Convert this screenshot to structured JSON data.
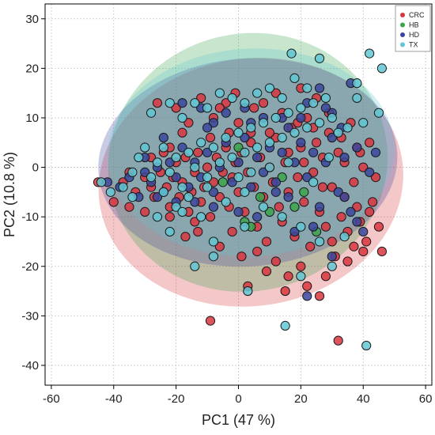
{
  "chart_data": {
    "type": "scatter",
    "title": "",
    "xlabel": "PC1 (47 %)",
    "ylabel": "PC2 (10.8 %)",
    "xlim": [
      -62,
      62
    ],
    "ylim": [
      -44,
      33
    ],
    "xticks": [
      -60,
      -40,
      -20,
      0,
      20,
      40,
      60
    ],
    "yticks": [
      -40,
      -30,
      -20,
      -10,
      0,
      10,
      20,
      30
    ],
    "xtick_labels": [
      "-60",
      "-40",
      "-20",
      "0",
      "20",
      "40",
      "60"
    ],
    "ytick_labels": [
      "-40",
      "-30",
      "-20",
      "-10",
      "0",
      "10",
      "20",
      "30"
    ],
    "grid": true,
    "legend_position": "top-right",
    "series": [
      {
        "name": "CRC",
        "color": "#d9353e",
        "ellipse": {
          "cx": 4,
          "cy": -3,
          "rx": 49,
          "ry": 25,
          "angle": -8
        },
        "points": [
          [
            -45,
            -3
          ],
          [
            -40,
            -7
          ],
          [
            -37,
            -3
          ],
          [
            -35,
            -1
          ],
          [
            -33,
            -5
          ],
          [
            -30,
            -2
          ],
          [
            -28,
            2
          ],
          [
            -27,
            -6
          ],
          [
            -25,
            -1
          ],
          [
            -24,
            3
          ],
          [
            -23,
            -4
          ],
          [
            -22,
            -8
          ],
          [
            -21,
            -2
          ],
          [
            -20,
            1
          ],
          [
            -19,
            -6
          ],
          [
            -18,
            -3
          ],
          [
            -17,
            2
          ],
          [
            -16,
            -9
          ],
          [
            -15,
            -5
          ],
          [
            -14,
            -1
          ],
          [
            -13,
            3
          ],
          [
            -12,
            -7
          ],
          [
            -11,
            -4
          ],
          [
            -10,
            0
          ],
          [
            -9,
            -10
          ],
          [
            -8,
            -3
          ],
          [
            -7,
            2
          ],
          [
            -6,
            -6
          ],
          [
            -5,
            -1
          ],
          [
            -4,
            4
          ],
          [
            -3,
            -8
          ],
          [
            -2,
            -2
          ],
          [
            -1,
            1
          ],
          [
            0,
            -5
          ],
          [
            1,
            3
          ],
          [
            2,
            -9
          ],
          [
            3,
            -1
          ],
          [
            4,
            5
          ],
          [
            5,
            -4
          ],
          [
            6,
            -12
          ],
          [
            7,
            2
          ],
          [
            8,
            -6
          ],
          [
            9,
            -15
          ],
          [
            10,
            0
          ],
          [
            11,
            -3
          ],
          [
            12,
            6
          ],
          [
            13,
            -8
          ],
          [
            14,
            -11
          ],
          [
            15,
            1
          ],
          [
            16,
            -5
          ],
          [
            17,
            8
          ],
          [
            18,
            -14
          ],
          [
            19,
            -2
          ],
          [
            20,
            4
          ],
          [
            21,
            -7
          ],
          [
            22,
            10
          ],
          [
            23,
            -16
          ],
          [
            24,
            -1
          ],
          [
            25,
            5
          ],
          [
            26,
            -9
          ],
          [
            27,
            2
          ],
          [
            28,
            -12
          ],
          [
            29,
            7
          ],
          [
            30,
            -4
          ],
          [
            31,
            -18
          ],
          [
            32,
            3
          ],
          [
            33,
            -10
          ],
          [
            34,
            -6
          ],
          [
            35,
            -13
          ],
          [
            36,
            9
          ],
          [
            37,
            -3
          ],
          [
            38,
            -8
          ],
          [
            39,
            -11
          ],
          [
            40,
            0
          ],
          [
            41,
            -15
          ],
          [
            42,
            5
          ],
          [
            43,
            -7
          ],
          [
            44,
            -2
          ],
          [
            45,
            -12
          ],
          [
            46,
            -17
          ],
          [
            -26,
            13
          ],
          [
            -20,
            12
          ],
          [
            -16,
            9
          ],
          [
            -12,
            14
          ],
          [
            -8,
            10
          ],
          [
            -4,
            13
          ],
          [
            0,
            9
          ],
          [
            5,
            12
          ],
          [
            10,
            7
          ],
          [
            14,
            11
          ],
          [
            19,
            9
          ],
          [
            24,
            8
          ],
          [
            29,
            11
          ],
          [
            33,
            6
          ],
          [
            38,
            4
          ],
          [
            42,
            -9
          ],
          [
            37,
            -16
          ],
          [
            28,
            -22
          ],
          [
            22,
            -24
          ],
          [
            15,
            -25
          ],
          [
            -9,
            -31
          ],
          [
            32,
            -35
          ],
          [
            -17,
            -14
          ],
          [
            -13,
            -13
          ],
          [
            -6,
            -16
          ],
          [
            1,
            -18
          ],
          [
            3,
            -24
          ],
          [
            20,
            -20
          ],
          [
            26,
            -26
          ],
          [
            16,
            -22
          ],
          [
            -30,
            -9
          ],
          [
            -35,
            -8
          ],
          [
            -28,
            -4
          ],
          [
            -22,
            -10
          ],
          [
            -14,
            -11
          ],
          [
            -2,
            -13
          ],
          [
            6,
            -17
          ],
          [
            12,
            -19
          ],
          [
            9,
            -21
          ],
          [
            30,
            -15
          ],
          [
            35,
            -19
          ],
          [
            40,
            -17
          ],
          [
            25,
            14
          ],
          [
            20,
            16
          ],
          [
            12,
            15
          ],
          [
            8,
            13
          ],
          [
            -1,
            15
          ],
          [
            -6,
            12
          ],
          [
            -22,
            4
          ],
          [
            -18,
            7
          ],
          [
            -9,
            6
          ],
          [
            -3,
            7
          ],
          [
            4,
            7
          ],
          [
            16,
            3
          ],
          [
            21,
            1
          ],
          [
            27,
            -4
          ],
          [
            34,
            1
          ],
          [
            39,
            3
          ]
        ]
      },
      {
        "name": "HB",
        "color": "#3aa54a",
        "ellipse": {
          "cx": 3,
          "cy": 1,
          "rx": 45,
          "ry": 26,
          "angle": -14
        },
        "points": [
          [
            0,
            4
          ],
          [
            2,
            -11
          ],
          [
            4,
            -12
          ],
          [
            18,
            -8
          ],
          [
            21,
            -5
          ],
          [
            10,
            -9
          ],
          [
            -5,
            -3
          ],
          [
            7,
            -6
          ],
          [
            14,
            -2
          ],
          [
            25,
            -13
          ]
        ]
      },
      {
        "name": "HD",
        "color": "#39469e",
        "ellipse": {
          "cx": 3,
          "cy": 1,
          "rx": 48,
          "ry": 21,
          "angle": -4
        },
        "points": [
          [
            -42,
            -3
          ],
          [
            -38,
            -4
          ],
          [
            -35,
            -2
          ],
          [
            -32,
            -6
          ],
          [
            -30,
            2
          ],
          [
            -28,
            -3
          ],
          [
            -26,
            0
          ],
          [
            -24,
            -5
          ],
          [
            -22,
            1
          ],
          [
            -20,
            -2
          ],
          [
            -18,
            4
          ],
          [
            -16,
            -4
          ],
          [
            -14,
            1
          ],
          [
            -12,
            -2
          ],
          [
            -10,
            3
          ],
          [
            -8,
            -5
          ],
          [
            -6,
            0
          ],
          [
            -4,
            5
          ],
          [
            -2,
            -3
          ],
          [
            0,
            1
          ],
          [
            2,
            6
          ],
          [
            4,
            -4
          ],
          [
            6,
            2
          ],
          [
            8,
            -1
          ],
          [
            10,
            4
          ],
          [
            12,
            -3
          ],
          [
            14,
            3
          ],
          [
            16,
            -6
          ],
          [
            18,
            1
          ],
          [
            20,
            5
          ],
          [
            22,
            -2
          ],
          [
            24,
            3
          ],
          [
            26,
            -8
          ],
          [
            28,
            1
          ],
          [
            30,
            6
          ],
          [
            32,
            -5
          ],
          [
            34,
            2
          ],
          [
            36,
            -9
          ],
          [
            38,
            4
          ],
          [
            40,
            -13
          ],
          [
            42,
            -1
          ],
          [
            44,
            3
          ],
          [
            -18,
            13
          ],
          [
            -12,
            12
          ],
          [
            -8,
            9
          ],
          [
            -4,
            11
          ],
          [
            2,
            12
          ],
          [
            8,
            10
          ],
          [
            16,
            8
          ],
          [
            22,
            13
          ],
          [
            26,
            16
          ],
          [
            30,
            11
          ],
          [
            36,
            17
          ],
          [
            30,
            -18
          ],
          [
            22,
            -26
          ],
          [
            18,
            -13
          ],
          [
            -14,
            -7
          ],
          [
            -8,
            -8
          ],
          [
            0,
            -9
          ],
          [
            6,
            -10
          ],
          [
            12,
            -5
          ],
          [
            -26,
            -6
          ],
          [
            -20,
            -7
          ],
          [
            24,
            -12
          ],
          [
            34,
            -6
          ],
          [
            38,
            -11
          ],
          [
            -10,
            8
          ],
          [
            4,
            9
          ],
          [
            14,
            10
          ],
          [
            20,
            10
          ],
          [
            28,
            12
          ],
          [
            33,
            8
          ],
          [
            -24,
            6
          ],
          [
            -30,
            -1
          ]
        ]
      },
      {
        "name": "TX",
        "color": "#62c7d3",
        "ellipse": {
          "cx": 4,
          "cy": 3,
          "rx": 46,
          "ry": 21,
          "angle": -3
        },
        "points": [
          [
            -44,
            -3
          ],
          [
            -41,
            -5
          ],
          [
            -37,
            -4
          ],
          [
            -34,
            -1
          ],
          [
            -32,
            2
          ],
          [
            -30,
            4
          ],
          [
            -28,
            -2
          ],
          [
            -26,
            1
          ],
          [
            -24,
            4
          ],
          [
            -22,
            -1
          ],
          [
            -20,
            2
          ],
          [
            -18,
            -4
          ],
          [
            -16,
            3
          ],
          [
            -14,
            0
          ],
          [
            -12,
            5
          ],
          [
            -10,
            -2
          ],
          [
            -8,
            4
          ],
          [
            -6,
            1
          ],
          [
            -4,
            6
          ],
          [
            -2,
            2
          ],
          [
            0,
            7
          ],
          [
            2,
            3
          ],
          [
            4,
            8
          ],
          [
            6,
            4
          ],
          [
            8,
            9
          ],
          [
            10,
            5
          ],
          [
            12,
            10
          ],
          [
            14,
            6
          ],
          [
            16,
            11
          ],
          [
            18,
            7
          ],
          [
            20,
            12
          ],
          [
            22,
            8
          ],
          [
            24,
            13
          ],
          [
            26,
            9
          ],
          [
            28,
            14
          ],
          [
            30,
            10
          ],
          [
            32,
            7
          ],
          [
            35,
            8
          ],
          [
            38,
            14
          ],
          [
            40,
            9
          ],
          [
            42,
            23
          ],
          [
            46,
            20
          ],
          [
            17,
            23
          ],
          [
            26,
            22
          ],
          [
            38,
            17
          ],
          [
            45,
            11
          ],
          [
            -28,
            11
          ],
          [
            -22,
            13
          ],
          [
            -18,
            10
          ],
          [
            -14,
            13
          ],
          [
            -10,
            12
          ],
          [
            -6,
            15
          ],
          [
            -2,
            14
          ],
          [
            2,
            13
          ],
          [
            6,
            15
          ],
          [
            10,
            16
          ],
          [
            14,
            14
          ],
          [
            18,
            18
          ],
          [
            22,
            16
          ],
          [
            -24,
            -5
          ],
          [
            -20,
            -8
          ],
          [
            -16,
            -6
          ],
          [
            -10,
            -4
          ],
          [
            -4,
            -7
          ],
          [
            2,
            -5
          ],
          [
            8,
            -8
          ],
          [
            14,
            -10
          ],
          [
            20,
            -12
          ],
          [
            26,
            -15
          ],
          [
            30,
            -20
          ],
          [
            34,
            -14
          ],
          [
            -8,
            -18
          ],
          [
            -14,
            -20
          ],
          [
            -22,
            -13
          ],
          [
            -8,
            -15
          ],
          [
            2,
            -12
          ],
          [
            3,
            -25
          ],
          [
            15,
            -32
          ],
          [
            41,
            -36
          ],
          [
            -18,
            -9
          ],
          [
            -12,
            -10
          ],
          [
            0,
            -2
          ],
          [
            4,
            -1
          ],
          [
            10,
            0
          ],
          [
            16,
            1
          ],
          [
            24,
            -3
          ],
          [
            29,
            2
          ],
          [
            -34,
            -6
          ],
          [
            -26,
            -10
          ],
          [
            20,
            -22
          ]
        ]
      }
    ]
  }
}
